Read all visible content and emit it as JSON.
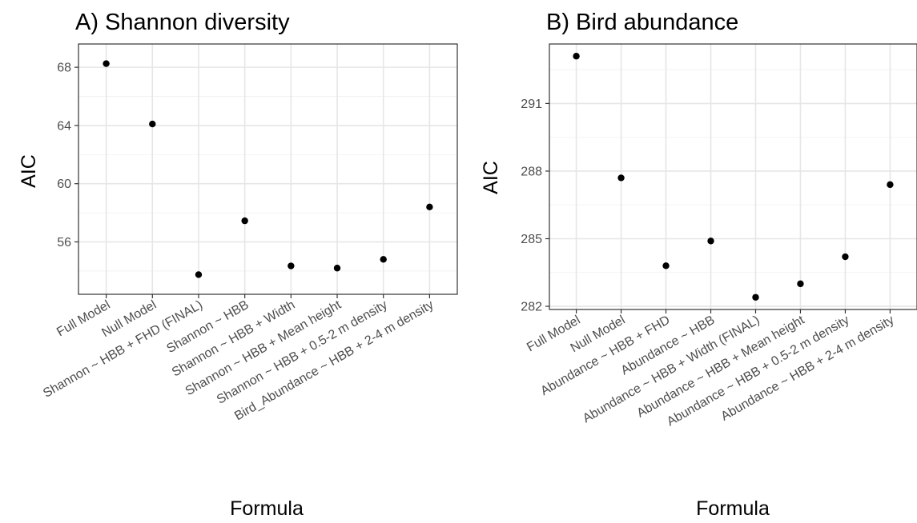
{
  "chart_data": [
    {
      "type": "scatter",
      "title": "A) Shannon diversity",
      "xlabel": "Formula",
      "ylabel": "AIC",
      "categories": [
        "Full Model",
        "Null Model",
        "Shannon ~ HBB + FHD (FINAL)",
        "Shannon ~ HBB",
        "Shannon ~ HBB + Width",
        "Shannon ~ HBB + Mean height",
        "Shannon ~ HBB + 0.5-2 m density",
        "Bird_Abundance ~ HBB + 2-4 m density"
      ],
      "values": [
        68.25,
        64.1,
        53.75,
        57.45,
        54.35,
        54.2,
        54.8,
        58.4
      ],
      "yticks": [
        56,
        60,
        64,
        68
      ],
      "ylim": [
        52.4,
        69.6
      ],
      "grid": true,
      "legend": "none"
    },
    {
      "type": "scatter",
      "title": "B) Bird abundance",
      "xlabel": "Formula",
      "ylabel": "AIC",
      "categories": [
        "Full Model",
        "Null Model",
        "Abundance ~ HBB + FHD",
        "Abundance ~ HBB",
        "Abundance ~ HBB + Width (FINAL)",
        "Abundance ~ HBB + Mean height",
        "Abundance ~ HBB + 0.5-2 m density",
        "Abundance ~ HBB + 2-4 m density"
      ],
      "values": [
        293.1,
        287.7,
        283.8,
        284.9,
        282.4,
        283.0,
        284.2,
        287.4
      ],
      "yticks": [
        282,
        285,
        288,
        291
      ],
      "ylim": [
        281.86,
        293.64
      ],
      "grid": true,
      "legend": "none"
    }
  ]
}
